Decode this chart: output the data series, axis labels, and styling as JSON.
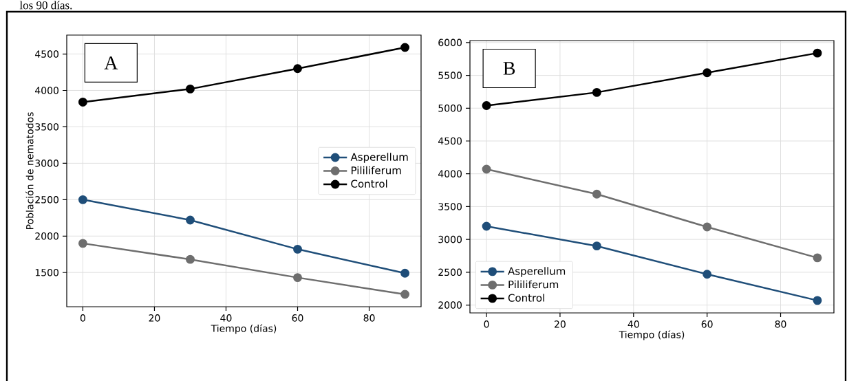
{
  "chart_data": [
    {
      "type": "line",
      "xlabel": "Tiempo (días)",
      "ylabel": "Población de nematodos",
      "annotations": [
        "los 90 días.",
        "A"
      ],
      "x": [
        0,
        30,
        60,
        90
      ],
      "series": [
        {
          "name": "Asperellum",
          "color": "#1f4e79",
          "values": [
            2500,
            2220,
            1820,
            1490
          ]
        },
        {
          "name": "Pililiferum",
          "color": "#6e6e6e",
          "values": [
            1900,
            1680,
            1430,
            1200
          ]
        },
        {
          "name": "Control",
          "color": "#000000",
          "values": [
            3840,
            4020,
            4300,
            4590
          ]
        }
      ],
      "xlim": [
        -4.5,
        94.5
      ],
      "ylim": [
        1030,
        4760
      ],
      "xticks": [
        0,
        20,
        40,
        60,
        80
      ],
      "yticks": [
        1500,
        2000,
        2500,
        3000,
        3500,
        4000,
        4500
      ],
      "grid": true,
      "legend": "right",
      "marker": "circle",
      "line_style": "solid"
    },
    {
      "type": "line",
      "xlabel": "Tiempo (días)",
      "annotations": [
        "B"
      ],
      "x": [
        0,
        30,
        60,
        90
      ],
      "series": [
        {
          "name": "Asperellum",
          "color": "#1f4e79",
          "values": [
            3200,
            2900,
            2470,
            2070
          ]
        },
        {
          "name": "Pililiferum",
          "color": "#6e6e6e",
          "values": [
            4070,
            3690,
            3190,
            2720
          ]
        },
        {
          "name": "Control",
          "color": "#000000",
          "values": [
            5040,
            5240,
            5540,
            5840
          ]
        }
      ],
      "xlim": [
        -4.5,
        94.5
      ],
      "ylim": [
        1880,
        6030
      ],
      "xticks": [
        0,
        20,
        40,
        60,
        80
      ],
      "yticks": [
        2000,
        2500,
        3000,
        3500,
        4000,
        4500,
        5000,
        5500,
        6000
      ],
      "grid": true,
      "legend": "bottom left",
      "marker": "circle",
      "line_style": "solid"
    }
  ]
}
